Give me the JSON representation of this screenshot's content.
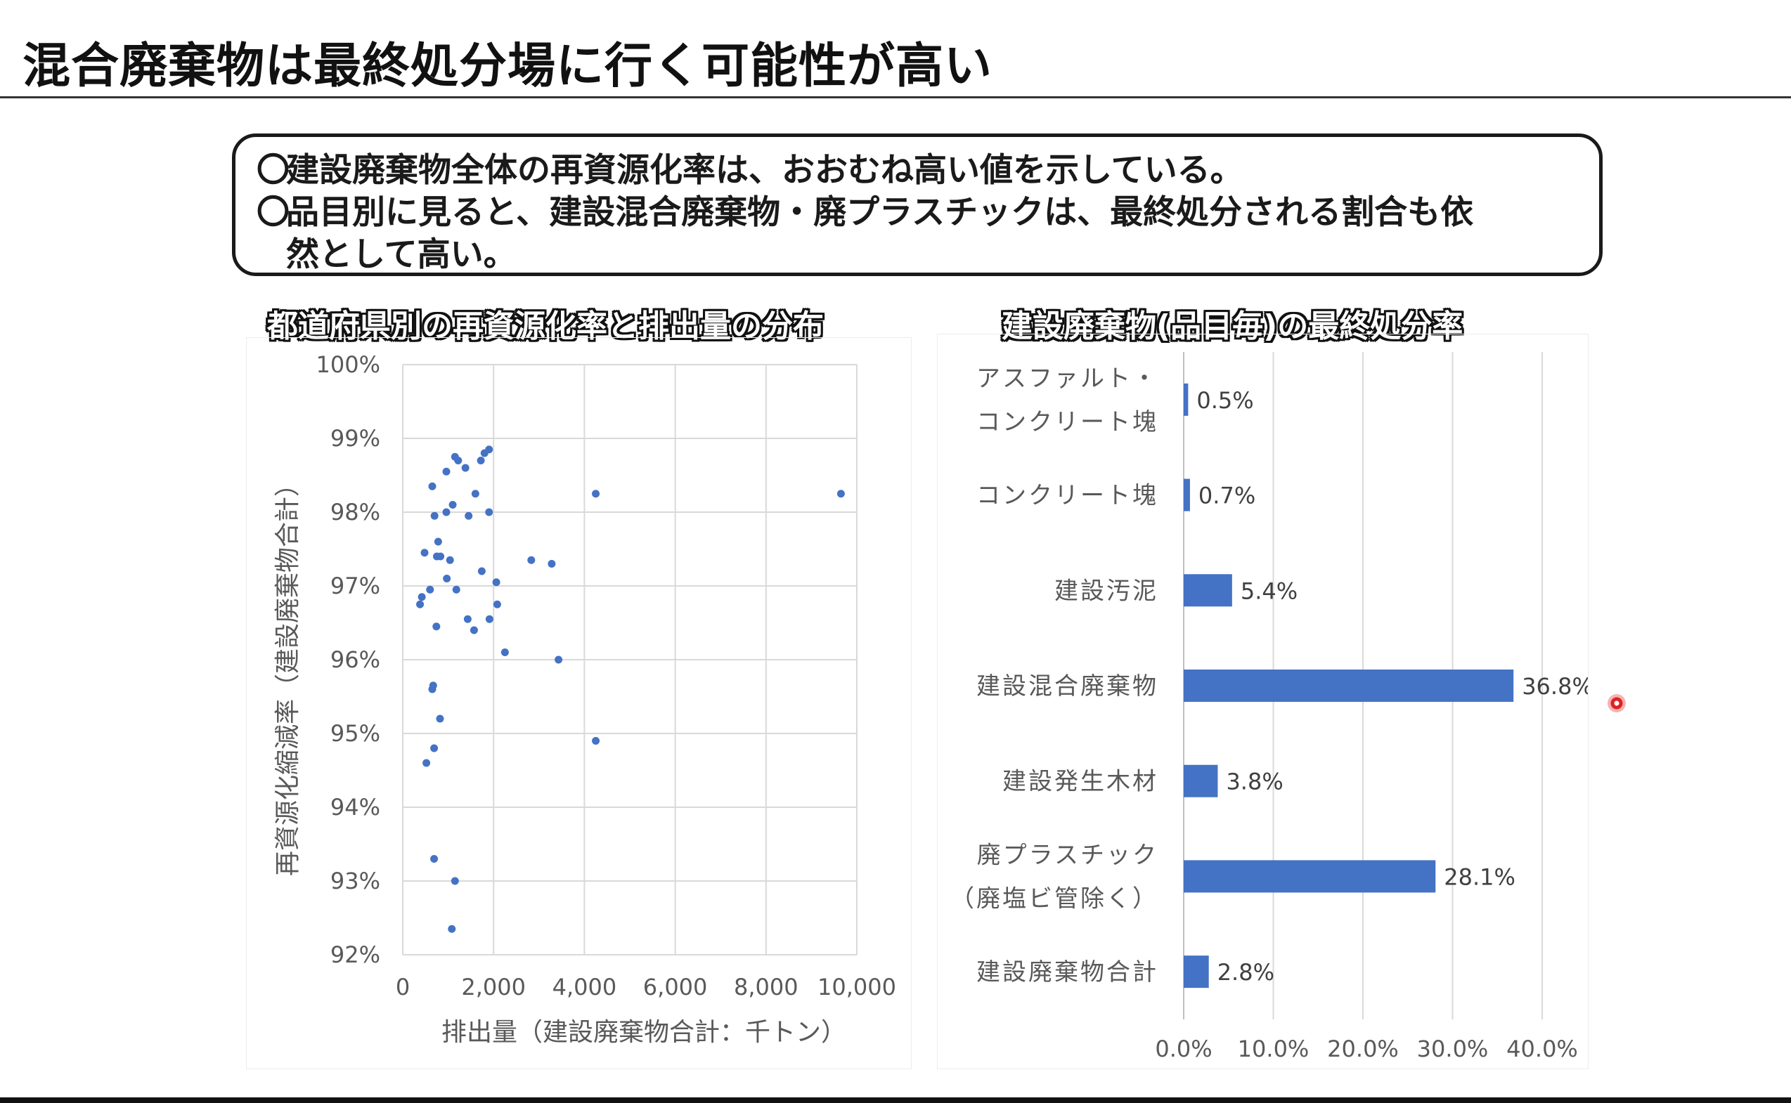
{
  "slide": {
    "title": "混合廃棄物は最終処分場に行く可能性が高い"
  },
  "summary": {
    "bullet_mark": "〇",
    "line1": "建設廃棄物全体の再資源化率は、おおむね高い値を示している。",
    "line2": "品目別に見ると、建設混合廃棄物・廃プラスチックは、最終処分される割合も依",
    "line2_cont": "然として高い。"
  },
  "colors": {
    "series": "#4472C4",
    "grid": "#d9d9d9",
    "text": "#595959",
    "cursor": "#e02020"
  },
  "chart_data": [
    {
      "type": "scatter",
      "title": "都道府県別の再資源化率と排出量の分布",
      "xlabel": "排出量（建設廃棄物合計：千トン）",
      "ylabel": "再資源化縮減率（建設廃棄物合計）",
      "xlim": [
        0,
        10000
      ],
      "ylim": [
        92,
        100
      ],
      "x_ticks": [
        "0",
        "2,000",
        "4,000",
        "6,000",
        "8,000",
        "10,000"
      ],
      "y_ticks": [
        "92%",
        "93%",
        "94%",
        "95%",
        "96%",
        "97%",
        "98%",
        "99%",
        "100%"
      ],
      "grid": true,
      "points": [
        [
          1150,
          98.75
        ],
        [
          1220,
          98.7
        ],
        [
          1380,
          98.6
        ],
        [
          960,
          98.55
        ],
        [
          1720,
          98.7
        ],
        [
          1800,
          98.8
        ],
        [
          1900,
          98.85
        ],
        [
          650,
          98.35
        ],
        [
          1600,
          98.25
        ],
        [
          1100,
          98.1
        ],
        [
          960,
          98.0
        ],
        [
          1450,
          97.95
        ],
        [
          700,
          97.95
        ],
        [
          1900,
          98.0
        ],
        [
          4250,
          98.25
        ],
        [
          9650,
          98.25
        ],
        [
          780,
          97.6
        ],
        [
          480,
          97.45
        ],
        [
          750,
          97.4
        ],
        [
          830,
          97.4
        ],
        [
          1040,
          97.35
        ],
        [
          2830,
          97.35
        ],
        [
          3280,
          97.3
        ],
        [
          1740,
          97.2
        ],
        [
          970,
          97.1
        ],
        [
          2060,
          97.05
        ],
        [
          600,
          96.95
        ],
        [
          1180,
          96.95
        ],
        [
          420,
          96.85
        ],
        [
          380,
          96.75
        ],
        [
          2080,
          96.75
        ],
        [
          1430,
          96.55
        ],
        [
          1910,
          96.55
        ],
        [
          740,
          96.45
        ],
        [
          1570,
          96.4
        ],
        [
          2250,
          96.1
        ],
        [
          3430,
          96.0
        ],
        [
          670,
          95.65
        ],
        [
          650,
          95.6
        ],
        [
          820,
          95.2
        ],
        [
          690,
          94.8
        ],
        [
          4250,
          94.9
        ],
        [
          520,
          94.6
        ],
        [
          690,
          93.3
        ],
        [
          1150,
          93.0
        ],
        [
          1080,
          92.35
        ]
      ]
    },
    {
      "type": "bar",
      "orientation": "horizontal",
      "title": "建設廃棄物(品目毎)の最終処分率",
      "categories": [
        [
          "アスファルト・",
          "コンクリート塊"
        ],
        [
          "コンクリート塊"
        ],
        [
          "建設汚泥"
        ],
        [
          "建設混合廃棄物"
        ],
        [
          "建設発生木材"
        ],
        [
          "廃プラスチック",
          "（廃塩ビ管除く）"
        ],
        [
          "建設廃棄物合計"
        ]
      ],
      "values": [
        0.5,
        0.7,
        5.4,
        36.8,
        3.8,
        28.1,
        2.8
      ],
      "value_labels": [
        "0.5%",
        "0.7%",
        "5.4%",
        "36.8%",
        "3.8%",
        "28.1%",
        "2.8%"
      ],
      "xlim": [
        0,
        40
      ],
      "x_ticks": [
        "0.0%",
        "10.0%",
        "20.0%",
        "30.0%",
        "40.0%"
      ],
      "grid": true
    }
  ]
}
